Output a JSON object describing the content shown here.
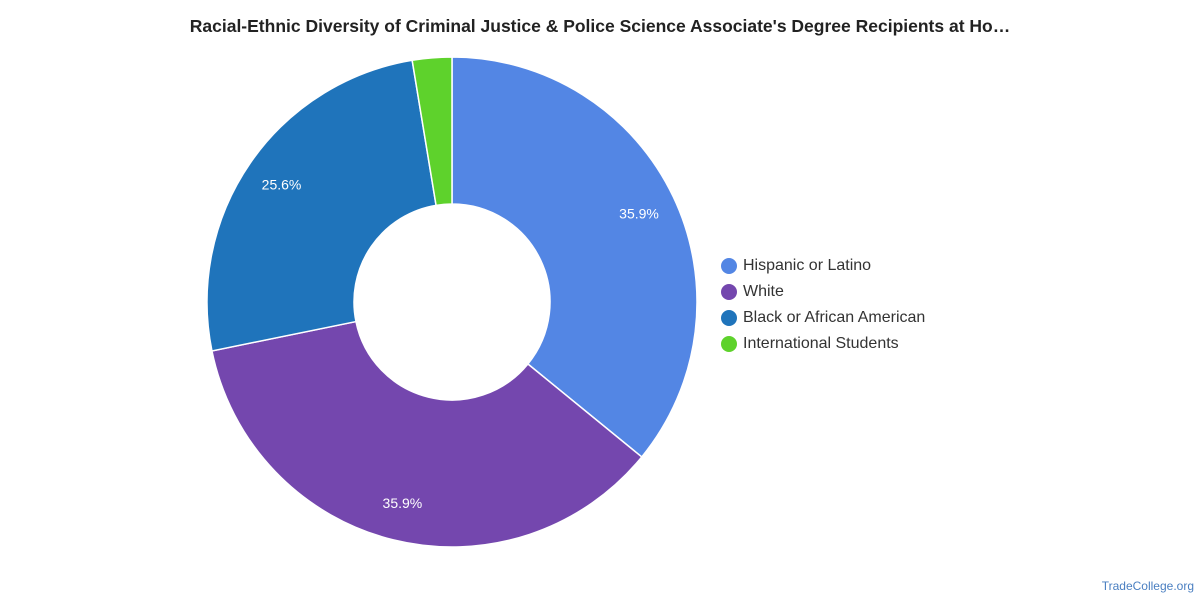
{
  "chart_data": {
    "type": "pie",
    "title": "Racial-Ethnic Diversity of Criminal Justice & Police Science Associate's Degree Recipients at Ho…",
    "donut": true,
    "categories": [
      "Hispanic or Latino",
      "White",
      "Black or African American",
      "International Students"
    ],
    "values": [
      35.9,
      35.9,
      25.6,
      2.6
    ],
    "labels": [
      "35.9%",
      "35.9%",
      "25.6%",
      ""
    ],
    "colors": [
      "#5386e4",
      "#7447ae",
      "#1f74bb",
      "#5ed22c"
    ],
    "legend_position": "right"
  },
  "watermark": "TradeCollege.org"
}
